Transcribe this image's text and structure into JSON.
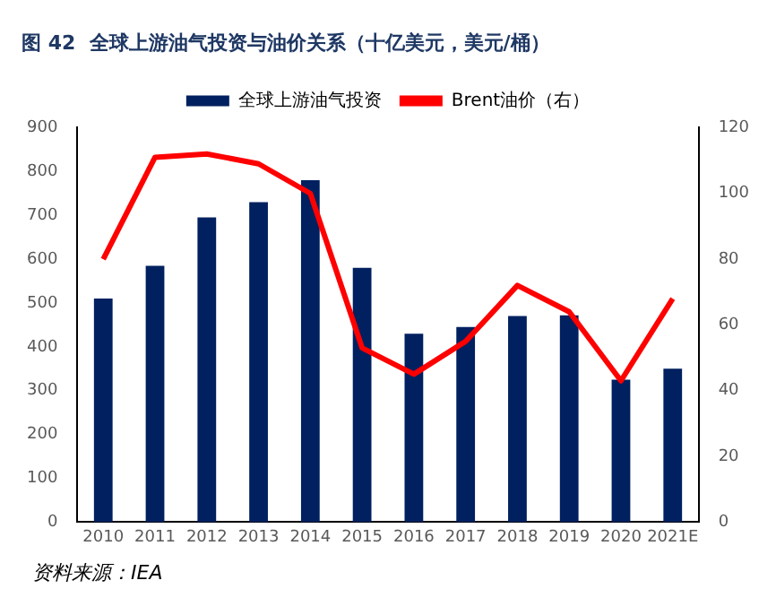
{
  "chart_data": {
    "type": "bar",
    "title": "图 42  全球上游油气投资与油价关系（十亿美元，美元/桶）",
    "categories": [
      "2010",
      "2011",
      "2012",
      "2013",
      "2014",
      "2015",
      "2016",
      "2017",
      "2018",
      "2019",
      "2020",
      "2021E"
    ],
    "series": [
      {
        "name": "全球上游油气投资",
        "color": "#002060",
        "values": [
          510,
          585,
          695,
          730,
          780,
          580,
          430,
          445,
          470,
          472,
          325,
          350
        ]
      },
      {
        "name": "Brent油价（右）",
        "type": "line",
        "axis": "y2",
        "color": "#ff0000",
        "values": [
          80,
          111,
          112,
          109,
          100,
          53,
          45,
          55,
          72,
          64,
          43,
          68
        ]
      }
    ],
    "ylim": [
      0,
      900
    ],
    "yticks": [
      0,
      100,
      200,
      300,
      400,
      500,
      600,
      700,
      800,
      900
    ],
    "y2lim": [
      0,
      120
    ],
    "y2ticks": [
      0,
      20,
      40,
      60,
      80,
      100,
      120
    ],
    "grid": false,
    "legend": "top",
    "marker": "none",
    "annotations": [
      "资料来源：IEA"
    ]
  }
}
